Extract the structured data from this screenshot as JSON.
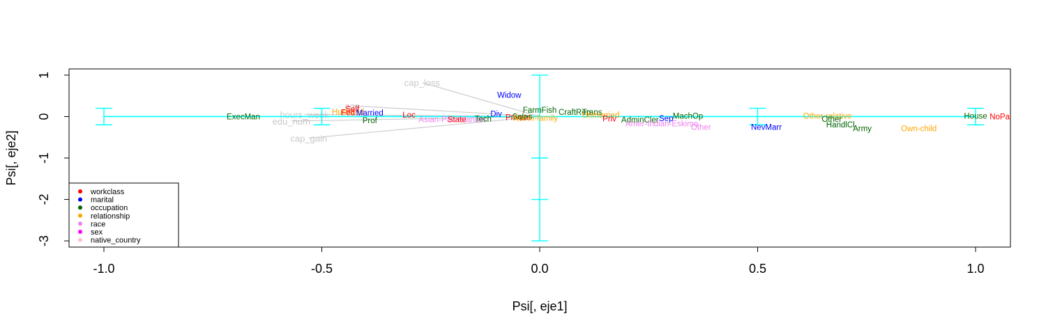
{
  "chart_data": {
    "type": "scatter",
    "title": "",
    "xlabel": "Psi[, eje1]",
    "ylabel": "Psi[, eje2]",
    "xlim": [
      -1.08,
      1.08
    ],
    "ylim": [
      -3.15,
      1.15
    ],
    "x_ticks": [
      -1.0,
      -0.5,
      0.0,
      0.5,
      1.0
    ],
    "x_tick_labels": [
      "-1.0",
      "-0.5",
      "0.0",
      "0.5",
      "1.0"
    ],
    "y_ticks": [
      1,
      0,
      -1,
      -2,
      -3
    ],
    "y_tick_labels": [
      "1",
      "0",
      "-1",
      "-2",
      "-3"
    ],
    "grid": false,
    "legend_placement": "bottom-left",
    "colors": {
      "cyan": "#00ffff",
      "arrow": "#cccccc",
      "workclass": "#ff0000",
      "marital": "#0000ff",
      "occupation": "#006400",
      "relationship": "#ffa500",
      "race": "#ee82ee",
      "sex": "#ff00ff",
      "native_country": "#ffc0cb"
    },
    "legend": [
      {
        "name": "workclass",
        "color": "#ff0000"
      },
      {
        "name": "marital",
        "color": "#0000ff"
      },
      {
        "name": "occupation",
        "color": "#006400"
      },
      {
        "name": "relationship",
        "color": "#ffa500"
      },
      {
        "name": "race",
        "color": "#ee82ee"
      },
      {
        "name": "sex",
        "color": "#ff00ff"
      },
      {
        "name": "native_country",
        "color": "#ffc0cb"
      }
    ],
    "error_bars": [
      {
        "x": -1.0,
        "y": 0,
        "ymin": -0.2,
        "ymax": 0.2
      },
      {
        "x": -0.5,
        "y": 0,
        "ymin": -0.2,
        "ymax": 0.2
      },
      {
        "x": 0.0,
        "y": 0,
        "ymin": -3.0,
        "ymax": 1.0
      },
      {
        "x": 0.0,
        "y": -1,
        "ymin": -1.0,
        "ymax": -1.0
      },
      {
        "x": 0.0,
        "y": -2,
        "ymin": -2.0,
        "ymax": -2.0
      },
      {
        "x": 0.5,
        "y": 0,
        "ymin": -0.2,
        "ymax": 0.2
      },
      {
        "x": 1.0,
        "y": 0,
        "ymin": -0.2,
        "ymax": 0.2
      }
    ],
    "variables": [
      {
        "name": "age",
        "x": -0.43,
        "y": 0.26
      },
      {
        "name": "hours_week",
        "x": -0.54,
        "y": 0.05
      },
      {
        "name": "edu_num",
        "x": -0.57,
        "y": -0.11
      },
      {
        "name": "cap_loss",
        "x": -0.27,
        "y": 0.82
      },
      {
        "name": "cap_gain",
        "x": -0.53,
        "y": -0.52
      }
    ],
    "points": [
      {
        "label": "ExecMan",
        "group": "occupation",
        "x": -0.68,
        "y": 0.0
      },
      {
        "label": "Husband",
        "group": "relationship",
        "x": -0.44,
        "y": 0.12
      },
      {
        "label": "Self",
        "group": "workclass",
        "x": -0.43,
        "y": 0.18
      },
      {
        "label": "Fed",
        "group": "workclass",
        "x": -0.44,
        "y": 0.1
      },
      {
        "label": "Married",
        "group": "marital",
        "x": -0.39,
        "y": 0.09
      },
      {
        "label": "Prof",
        "group": "occupation",
        "x": -0.39,
        "y": -0.09
      },
      {
        "label": "Loc",
        "group": "workclass",
        "x": -0.3,
        "y": 0.04
      },
      {
        "label": "Asian-Pac-Islander",
        "group": "race",
        "x": -0.2,
        "y": -0.07
      },
      {
        "label": "State",
        "group": "workclass",
        "x": -0.19,
        "y": -0.07
      },
      {
        "label": "Tech",
        "group": "occupation",
        "x": -0.13,
        "y": -0.05
      },
      {
        "label": "Div",
        "group": "marital",
        "x": -0.1,
        "y": 0.07
      },
      {
        "label": "Widow",
        "group": "marital",
        "x": -0.07,
        "y": 0.52
      },
      {
        "label": "Private",
        "group": "workclass",
        "x": -0.05,
        "y": -0.02
      },
      {
        "label": "Sales",
        "group": "occupation",
        "x": -0.04,
        "y": 0.0
      },
      {
        "label": "Not-in-family",
        "group": "relationship",
        "x": -0.01,
        "y": -0.03
      },
      {
        "label": "FarmFish",
        "group": "occupation",
        "x": -0.0,
        "y": 0.16
      },
      {
        "label": "CraftRep",
        "group": "occupation",
        "x": 0.08,
        "y": 0.11
      },
      {
        "label": "Trans",
        "group": "occupation",
        "x": 0.12,
        "y": 0.11
      },
      {
        "label": "Unmarried",
        "group": "relationship",
        "x": 0.14,
        "y": 0.04
      },
      {
        "label": "Priv",
        "group": "workclass",
        "x": 0.16,
        "y": -0.05
      },
      {
        "label": "AdminCler",
        "group": "occupation",
        "x": 0.23,
        "y": -0.08
      },
      {
        "label": "Amer-Indian-Eskimo",
        "group": "race",
        "x": 0.28,
        "y": -0.17
      },
      {
        "label": "Sep",
        "group": "marital",
        "x": 0.29,
        "y": -0.04
      },
      {
        "label": "MachOp",
        "group": "occupation",
        "x": 0.34,
        "y": 0.02
      },
      {
        "label": "Other",
        "group": "race",
        "x": 0.37,
        "y": -0.25
      },
      {
        "label": "NevMarr",
        "group": "marital",
        "x": 0.52,
        "y": -0.25
      },
      {
        "label": "Other-relative",
        "group": "relationship",
        "x": 0.66,
        "y": 0.02
      },
      {
        "label": "Other",
        "group": "occupation",
        "x": 0.67,
        "y": -0.06
      },
      {
        "label": "HandlCl",
        "group": "occupation",
        "x": 0.69,
        "y": -0.19
      },
      {
        "label": "Army",
        "group": "occupation",
        "x": 0.74,
        "y": -0.29
      },
      {
        "label": "Own-child",
        "group": "relationship",
        "x": 0.87,
        "y": -0.29
      },
      {
        "label": "House",
        "group": "occupation",
        "x": 1.0,
        "y": 0.02
      },
      {
        "label": "NoPay",
        "group": "workclass",
        "x": 1.06,
        "y": 0.0
      }
    ]
  }
}
